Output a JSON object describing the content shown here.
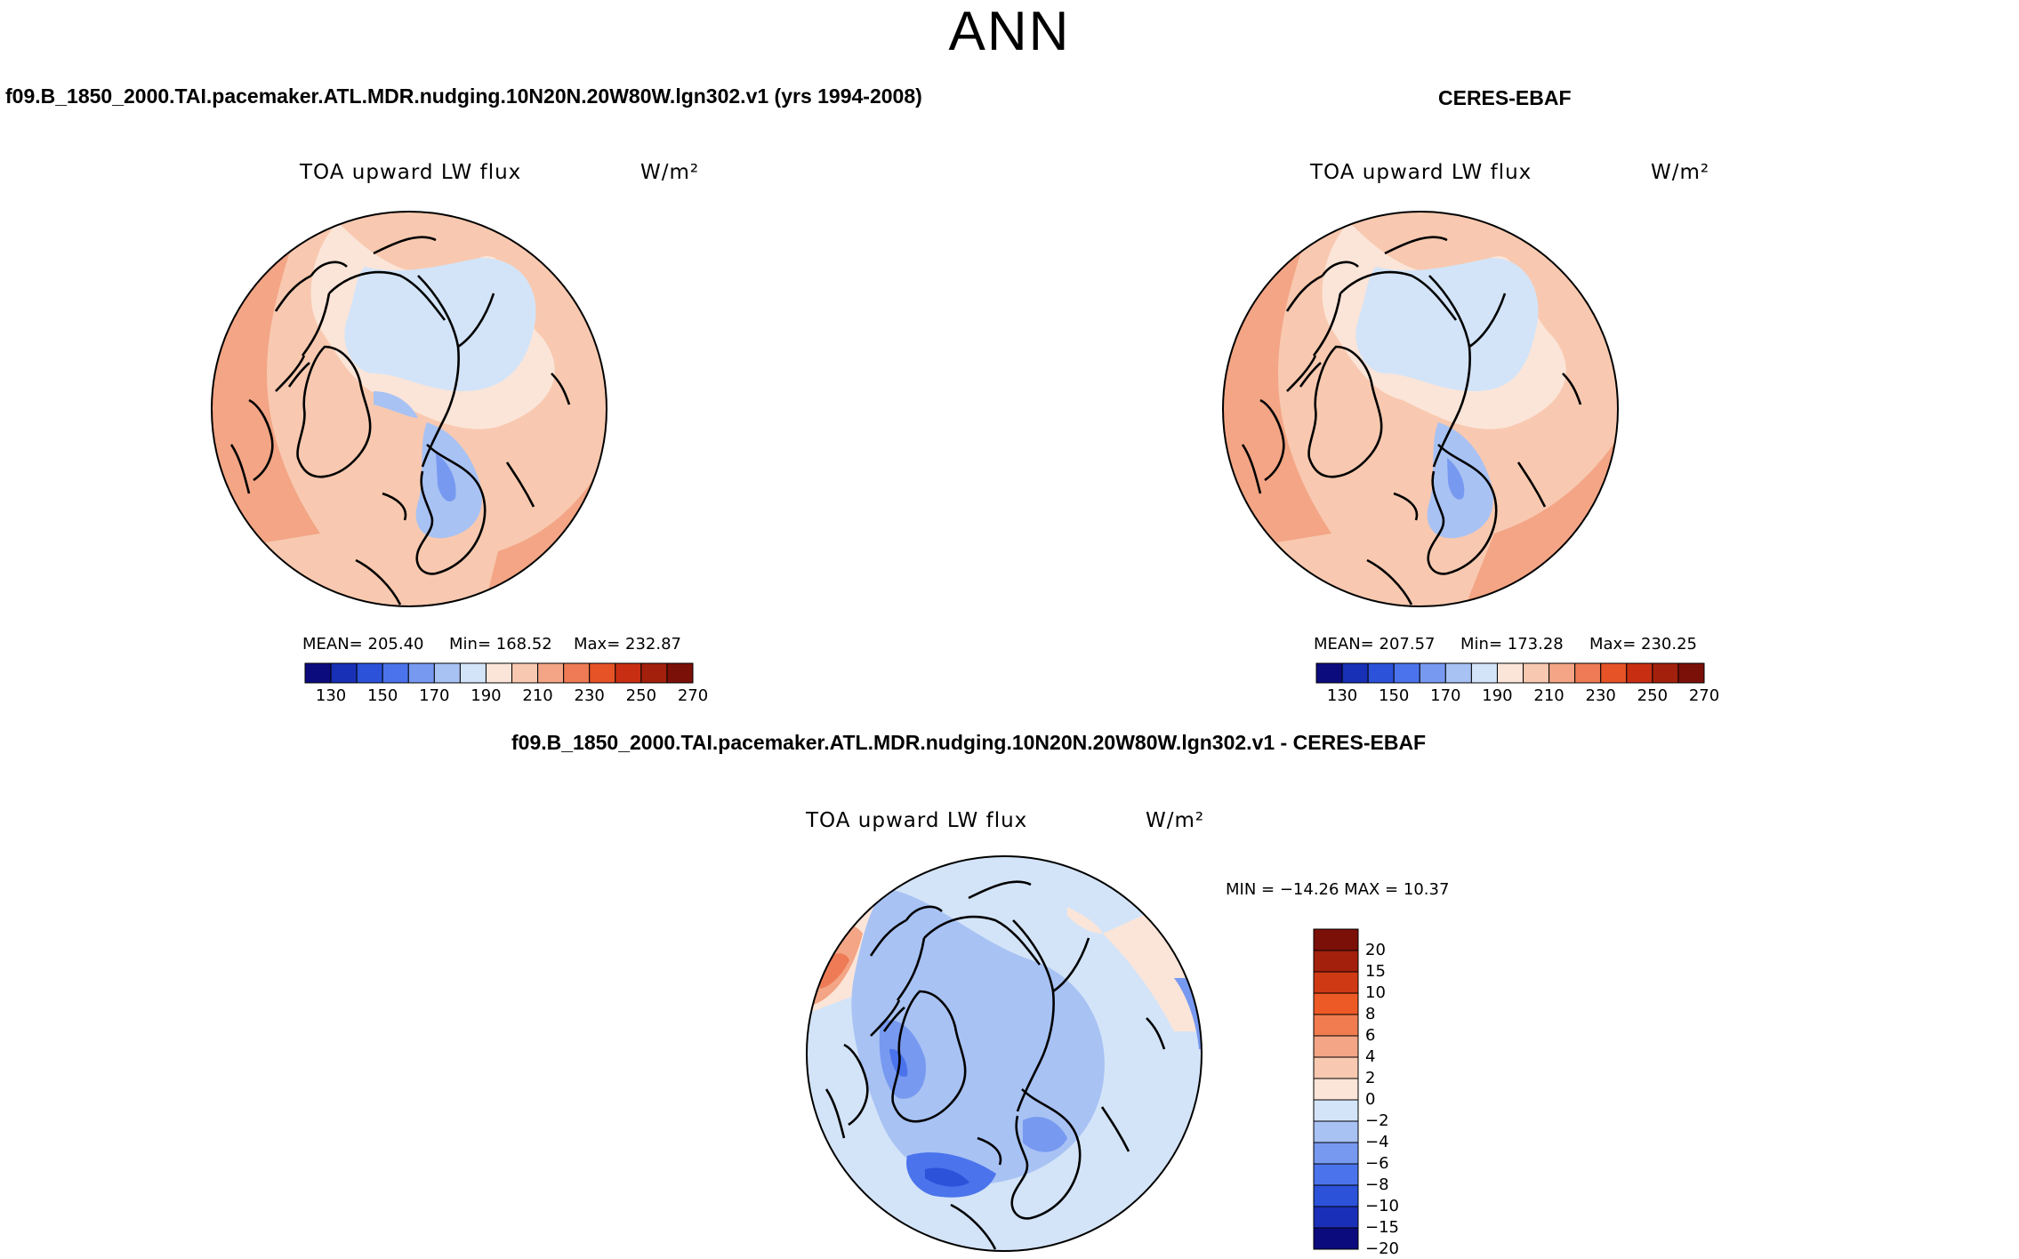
{
  "page_title": "ANN",
  "titles": {
    "left_case": "f09.B_1850_2000.TAI.pacemaker.ATL.MDR.nudging.10N20N.20W80W.lgn302.v1 (yrs 1994-2008)",
    "right_case": "CERES-EBAF",
    "diff_case": "f09.B_1850_2000.TAI.pacemaker.ATL.MDR.nudging.10N20N.20W80W.lgn302.v1 - CERES-EBAF"
  },
  "panels": {
    "model": {
      "variable": "TOA upward LW flux",
      "units": "W/m²",
      "mean_label": "MEAN= 205.40",
      "min_label": "Min= 168.52",
      "max_label": "Max= 232.87",
      "colorbar_ticks": [
        "130",
        "150",
        "170",
        "190",
        "210",
        "230",
        "250",
        "270"
      ]
    },
    "obs": {
      "variable": "TOA upward LW flux",
      "units": "W/m²",
      "mean_label": "MEAN= 207.57",
      "min_label": "Min= 173.28",
      "max_label": "Max= 230.25",
      "colorbar_ticks": [
        "130",
        "150",
        "170",
        "190",
        "210",
        "230",
        "250",
        "270"
      ]
    },
    "diff": {
      "variable": "TOA upward LW flux",
      "units": "W/m²",
      "minmax_label": "MIN = −14.26 MAX =  10.37",
      "colorbar_labels": [
        "20",
        "15",
        "10",
        "8",
        "6",
        "4",
        "2",
        "0",
        "−2",
        "−4",
        "−6",
        "−8",
        "−10",
        "−15",
        "−20"
      ]
    }
  },
  "colors": {
    "abs_scale": [
      "#0c0b7e",
      "#1730b5",
      "#2b52d9",
      "#4b73ec",
      "#7799f0",
      "#a8c2f4",
      "#d3e4f8",
      "#fbe5d8",
      "#f8c9b0",
      "#f3a585",
      "#ee7b55",
      "#e65327",
      "#c82f12",
      "#a3200c",
      "#7b1009"
    ],
    "diff_scale": [
      "#7b1009",
      "#a3200c",
      "#cf3a14",
      "#ee5a26",
      "#f07c50",
      "#f3a585",
      "#f8c9b0",
      "#fbe5d8",
      "#d3e4f8",
      "#a8c2f4",
      "#7799f0",
      "#4b73ec",
      "#2b52d9",
      "#1a2fb8",
      "#0c0b7e"
    ]
  }
}
